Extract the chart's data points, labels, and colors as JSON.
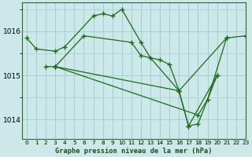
{
  "title": "Graphe pression niveau de la mer (hPa)",
  "background_color": "#cce8e8",
  "grid_color": "#a8cece",
  "line_color": "#1a6b1a",
  "xlim": [
    -0.5,
    23
  ],
  "ylim": [
    1013.55,
    1016.65
  ],
  "yticks": [
    1014,
    1015,
    1016
  ],
  "xticks": [
    0,
    1,
    2,
    3,
    4,
    5,
    6,
    7,
    8,
    9,
    10,
    11,
    12,
    13,
    14,
    15,
    16,
    17,
    18,
    19,
    20,
    21,
    22,
    23
  ],
  "series": [
    {
      "x": [
        0,
        1,
        3,
        4,
        7,
        8,
        9,
        10,
        12,
        13,
        16,
        21
      ],
      "y": [
        1015.85,
        1015.6,
        1015.55,
        1015.65,
        1016.35,
        1016.4,
        1016.35,
        1016.5,
        1015.75,
        1015.4,
        1014.65,
        1015.85
      ]
    },
    {
      "x": [
        2,
        3,
        6,
        11,
        12,
        14,
        15,
        16,
        17,
        20
      ],
      "y": [
        1015.2,
        1015.2,
        1015.9,
        1015.75,
        1015.45,
        1015.35,
        1015.25,
        1014.65,
        1013.85,
        1015.0
      ]
    },
    {
      "x": [
        3,
        16,
        17,
        18,
        20
      ],
      "y": [
        1015.2,
        1014.65,
        1013.85,
        1013.9,
        1015.0
      ]
    },
    {
      "x": [
        3,
        18,
        19,
        21,
        23
      ],
      "y": [
        1015.2,
        1014.1,
        1014.45,
        1015.85,
        1015.9
      ]
    }
  ]
}
